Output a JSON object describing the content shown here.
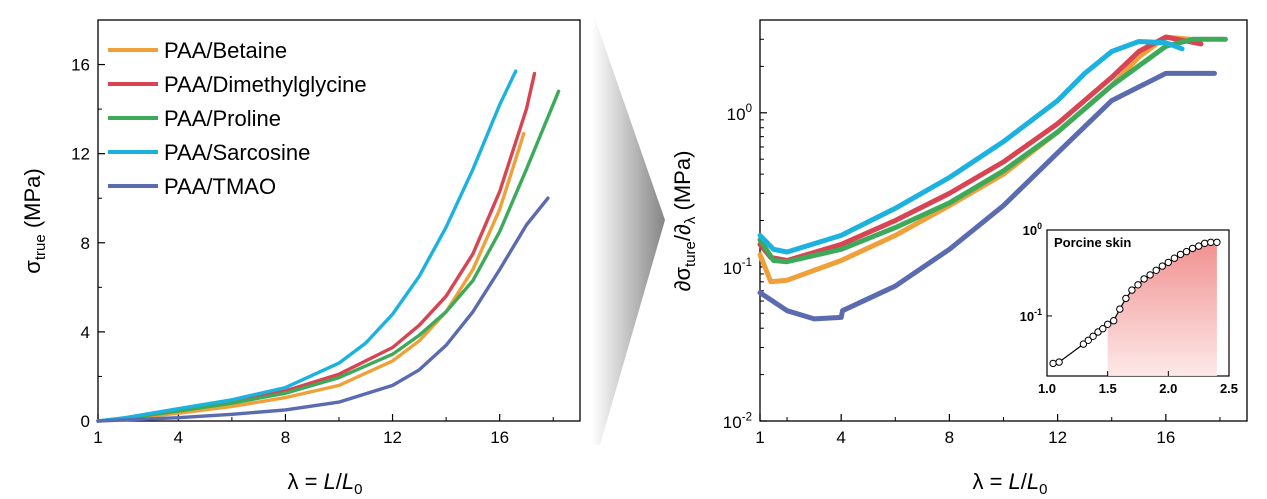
{
  "chart_data": [
    {
      "type": "line",
      "xlabel": "λ = L/L0",
      "ylabel": "σtrue (MPa)",
      "xlim": [
        1,
        19
      ],
      "ylim": [
        0,
        18
      ],
      "x_ticks": [
        "1",
        "4",
        "8",
        "12",
        "16"
      ],
      "y_ticks": [
        "0",
        "4",
        "8",
        "12",
        "16"
      ],
      "legend_position": "top-left",
      "series": [
        {
          "name": "PAA/Betaine",
          "color": "#F0A038",
          "x": [
            1,
            2,
            4,
            6,
            8,
            10,
            12,
            13,
            14,
            15,
            16,
            16.9
          ],
          "y": [
            0,
            0.1,
            0.35,
            0.65,
            1.05,
            1.6,
            2.7,
            3.6,
            4.9,
            6.8,
            9.5,
            12.9
          ]
        },
        {
          "name": "PAA/Dimethylglycine",
          "color": "#D94452",
          "x": [
            1,
            2,
            4,
            6,
            8,
            10,
            12,
            13,
            14,
            15,
            16,
            17,
            17.3
          ],
          "y": [
            0,
            0.12,
            0.45,
            0.85,
            1.35,
            2.1,
            3.3,
            4.3,
            5.6,
            7.5,
            10.3,
            14.0,
            15.6
          ]
        },
        {
          "name": "PAA/Proline",
          "color": "#3DAA5A",
          "x": [
            1,
            2,
            4,
            6,
            8,
            10,
            12,
            13,
            14,
            15,
            16,
            17,
            18.2
          ],
          "y": [
            0,
            0.12,
            0.45,
            0.8,
            1.25,
            1.95,
            3.0,
            3.85,
            4.9,
            6.3,
            8.5,
            11.3,
            14.8
          ]
        },
        {
          "name": "PAA/Sarcosine",
          "color": "#1CB2E0",
          "x": [
            1,
            2,
            4,
            6,
            8,
            10,
            11,
            12,
            13,
            14,
            15,
            16,
            16.6
          ],
          "y": [
            0,
            0.15,
            0.55,
            0.95,
            1.5,
            2.6,
            3.5,
            4.8,
            6.5,
            8.7,
            11.3,
            14.2,
            15.7
          ]
        },
        {
          "name": "PAA/TMAO",
          "color": "#5B6BB0",
          "x": [
            1,
            2,
            4,
            6,
            8,
            10,
            12,
            13,
            14,
            15,
            16,
            17,
            17.8
          ],
          "y": [
            0,
            0.05,
            0.15,
            0.3,
            0.5,
            0.85,
            1.6,
            2.3,
            3.4,
            4.9,
            6.8,
            8.8,
            10.0
          ]
        }
      ]
    },
    {
      "type": "line",
      "xlabel": "λ = L/L0",
      "ylabel": "∂σture/∂λ (MPa)",
      "y_scale": "log",
      "xlim": [
        1,
        19
      ],
      "ylim": [
        0.01,
        4
      ],
      "x_ticks": [
        "1",
        "4",
        "8",
        "12",
        "16"
      ],
      "y_ticks": [
        "10-2",
        "10-1",
        "100"
      ],
      "series": [
        {
          "name": "PAA/Betaine",
          "color": "#F0A038",
          "x": [
            1,
            1.4,
            2,
            4,
            6,
            8,
            10,
            12,
            14,
            15,
            16,
            16.9
          ],
          "y": [
            0.12,
            0.08,
            0.082,
            0.11,
            0.16,
            0.25,
            0.4,
            0.75,
            1.5,
            2.3,
            3.1,
            3.0
          ]
        },
        {
          "name": "PAA/Dimethylglycine",
          "color": "#D94452",
          "x": [
            1,
            1.4,
            2,
            4,
            6,
            8,
            10,
            12,
            14,
            15,
            16,
            17.3
          ],
          "y": [
            0.14,
            0.115,
            0.11,
            0.14,
            0.2,
            0.3,
            0.48,
            0.85,
            1.7,
            2.5,
            3.1,
            2.8
          ]
        },
        {
          "name": "PAA/Proline",
          "color": "#3DAA5A",
          "x": [
            1,
            1.5,
            2,
            4,
            6,
            8,
            10,
            12,
            14,
            16,
            17,
            18.2
          ],
          "y": [
            0.15,
            0.11,
            0.108,
            0.13,
            0.18,
            0.26,
            0.42,
            0.75,
            1.5,
            2.7,
            3.0,
            3.0
          ]
        },
        {
          "name": "PAA/Sarcosine",
          "color": "#1CB2E0",
          "x": [
            1,
            1.5,
            2,
            4,
            6,
            8,
            10,
            12,
            13,
            14,
            15,
            16,
            16.6
          ],
          "y": [
            0.16,
            0.13,
            0.125,
            0.16,
            0.24,
            0.38,
            0.65,
            1.2,
            1.8,
            2.5,
            2.9,
            2.85,
            2.6
          ]
        },
        {
          "name": "PAA/TMAO",
          "color": "#5B6BB0",
          "x": [
            1,
            2,
            3,
            4,
            4.05,
            6,
            8,
            10,
            12,
            14,
            16,
            17.8
          ],
          "y": [
            0.068,
            0.052,
            0.046,
            0.047,
            0.052,
            0.075,
            0.13,
            0.25,
            0.55,
            1.2,
            1.8,
            1.8
          ]
        }
      ],
      "inset": {
        "title": "Porcine skin",
        "y_scale": "log",
        "xlim": [
          1.0,
          2.5
        ],
        "ylim": [
          0.02,
          1
        ],
        "x_ticks": [
          "1.0",
          "1.5",
          "2.0",
          "2.5"
        ],
        "y_ticks": [
          "10-1",
          "100"
        ],
        "x": [
          1.05,
          1.1,
          1.3,
          1.34,
          1.38,
          1.42,
          1.46,
          1.5,
          1.55,
          1.6,
          1.65,
          1.7,
          1.75,
          1.8,
          1.85,
          1.9,
          1.95,
          2.0,
          2.05,
          2.1,
          2.15,
          2.2,
          2.25,
          2.3,
          2.35,
          2.4
        ],
        "y": [
          0.028,
          0.029,
          0.047,
          0.052,
          0.058,
          0.065,
          0.071,
          0.08,
          0.088,
          0.12,
          0.16,
          0.2,
          0.23,
          0.27,
          0.3,
          0.34,
          0.38,
          0.42,
          0.47,
          0.52,
          0.56,
          0.61,
          0.65,
          0.7,
          0.72,
          0.72
        ]
      }
    }
  ]
}
